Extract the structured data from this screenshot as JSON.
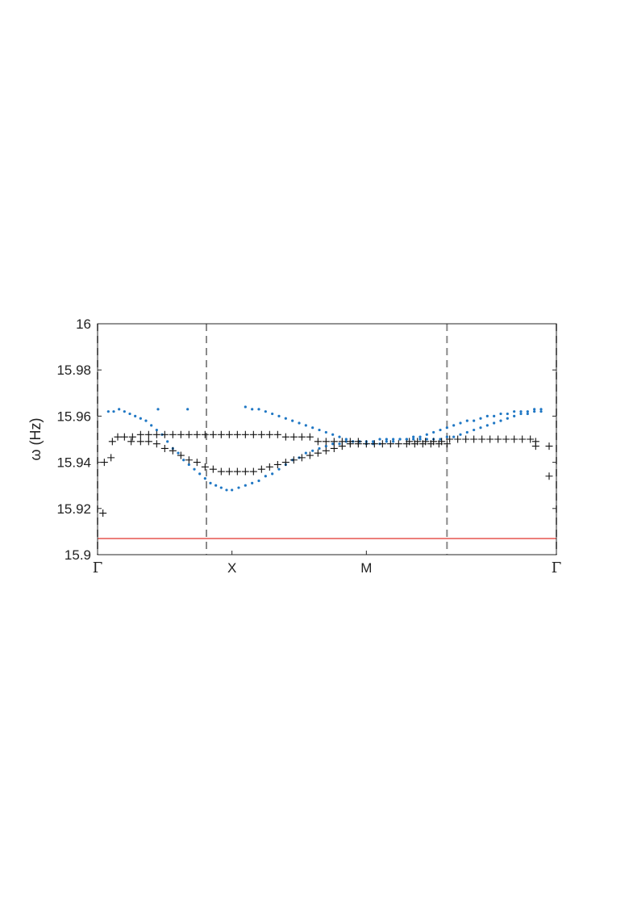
{
  "chart_data": {
    "type": "scatter",
    "title": "",
    "ylabel": "ω (Hz)",
    "xlabel": "",
    "ylim": [
      15.9,
      16.0
    ],
    "yticks": [
      15.9,
      15.92,
      15.94,
      15.96,
      15.98,
      16
    ],
    "ytick_labels": [
      "15.9",
      "15.92",
      "15.94",
      "15.96",
      "15.98",
      "16"
    ],
    "xlim": [
      0,
      3.414
    ],
    "xticks": [
      0,
      1,
      2,
      3.414
    ],
    "xtick_labels": [
      "Γ",
      "X",
      "M",
      "Γ"
    ],
    "dashed_lines_x": [
      0,
      0.81,
      2.6,
      3.414
    ],
    "reference_line": {
      "y": 15.907,
      "color": "#e0332c"
    },
    "colors": {
      "dots": "#1f77c4",
      "plus": "#111111",
      "dashed": "#8a8a8a"
    },
    "series": [
      {
        "marker": "dot",
        "points": [
          [
            0.08,
            15.962
          ],
          [
            0.12,
            15.962
          ],
          [
            0.16,
            15.963
          ],
          [
            0.2,
            15.962
          ],
          [
            0.24,
            15.961
          ],
          [
            0.28,
            15.96
          ],
          [
            0.32,
            15.959
          ],
          [
            0.36,
            15.958
          ],
          [
            0.4,
            15.956
          ],
          [
            0.44,
            15.954
          ],
          [
            0.48,
            15.952
          ],
          [
            0.52,
            15.949
          ],
          [
            0.56,
            15.946
          ],
          [
            0.6,
            15.944
          ],
          [
            0.64,
            15.941
          ],
          [
            0.68,
            15.939
          ],
          [
            0.72,
            15.937
          ],
          [
            0.76,
            15.935
          ],
          [
            0.8,
            15.933
          ],
          [
            0.84,
            15.931
          ],
          [
            0.88,
            15.93
          ],
          [
            0.92,
            15.929
          ],
          [
            0.96,
            15.928
          ],
          [
            1.0,
            15.928
          ],
          [
            1.05,
            15.929
          ],
          [
            1.1,
            15.93
          ],
          [
            1.15,
            15.931
          ],
          [
            1.2,
            15.932
          ],
          [
            1.25,
            15.934
          ],
          [
            1.3,
            15.935
          ],
          [
            1.35,
            15.937
          ],
          [
            1.4,
            15.939
          ],
          [
            1.45,
            15.941
          ],
          [
            1.5,
            15.942
          ],
          [
            1.55,
            15.944
          ],
          [
            1.6,
            15.945
          ],
          [
            1.65,
            15.946
          ],
          [
            1.7,
            15.947
          ],
          [
            1.75,
            15.948
          ],
          [
            1.8,
            15.948
          ],
          [
            1.85,
            15.949
          ],
          [
            1.9,
            15.949
          ],
          [
            1.95,
            15.949
          ],
          [
            2.0,
            15.949
          ],
          [
            2.05,
            15.949
          ],
          [
            2.1,
            15.95
          ],
          [
            2.15,
            15.95
          ],
          [
            2.2,
            15.95
          ],
          [
            2.25,
            15.95
          ],
          [
            2.3,
            15.95
          ],
          [
            2.35,
            15.95
          ],
          [
            2.4,
            15.95
          ],
          [
            2.45,
            15.95
          ],
          [
            2.5,
            15.95
          ],
          [
            2.55,
            15.95
          ],
          [
            2.6,
            15.951
          ],
          [
            2.65,
            15.951
          ],
          [
            2.7,
            15.952
          ],
          [
            2.75,
            15.953
          ],
          [
            2.8,
            15.954
          ],
          [
            2.85,
            15.955
          ],
          [
            2.9,
            15.956
          ],
          [
            2.95,
            15.957
          ],
          [
            3.0,
            15.958
          ],
          [
            3.05,
            15.959
          ],
          [
            3.1,
            15.96
          ],
          [
            3.15,
            15.961
          ],
          [
            3.2,
            15.961
          ],
          [
            3.25,
            15.962
          ],
          [
            3.3,
            15.962
          ],
          [
            1.1,
            15.964
          ],
          [
            1.15,
            15.963
          ],
          [
            1.2,
            15.963
          ],
          [
            1.25,
            15.962
          ],
          [
            1.3,
            15.961
          ],
          [
            1.35,
            15.96
          ],
          [
            1.4,
            15.959
          ],
          [
            1.45,
            15.958
          ],
          [
            1.5,
            15.957
          ],
          [
            1.55,
            15.956
          ],
          [
            1.6,
            15.955
          ],
          [
            1.65,
            15.954
          ],
          [
            1.7,
            15.953
          ],
          [
            1.75,
            15.952
          ],
          [
            1.8,
            15.951
          ],
          [
            1.85,
            15.95
          ],
          [
            1.9,
            15.949
          ],
          [
            1.95,
            15.949
          ],
          [
            2.0,
            15.948
          ],
          [
            2.05,
            15.948
          ],
          [
            2.1,
            15.948
          ],
          [
            2.15,
            15.949
          ],
          [
            2.2,
            15.949
          ],
          [
            2.25,
            15.95
          ],
          [
            2.3,
            15.95
          ],
          [
            2.35,
            15.951
          ],
          [
            2.4,
            15.951
          ],
          [
            2.45,
            15.952
          ],
          [
            2.5,
            15.953
          ],
          [
            2.55,
            15.954
          ],
          [
            2.6,
            15.955
          ],
          [
            2.65,
            15.956
          ],
          [
            2.7,
            15.957
          ],
          [
            2.75,
            15.958
          ],
          [
            2.8,
            15.958
          ],
          [
            2.85,
            15.959
          ],
          [
            2.9,
            15.96
          ],
          [
            2.95,
            15.96
          ],
          [
            3.0,
            15.961
          ],
          [
            3.05,
            15.961
          ],
          [
            3.1,
            15.962
          ],
          [
            3.15,
            15.962
          ],
          [
            3.2,
            15.962
          ],
          [
            3.25,
            15.963
          ],
          [
            3.3,
            15.963
          ],
          [
            0.45,
            15.963
          ],
          [
            0.67,
            15.963
          ]
        ]
      },
      {
        "marker": "plus",
        "points": [
          [
            0.04,
            15.918
          ],
          [
            0.05,
            15.94
          ],
          [
            0.1,
            15.942
          ],
          [
            0.11,
            15.949
          ],
          [
            0.15,
            15.951
          ],
          [
            0.2,
            15.951
          ],
          [
            0.26,
            15.951
          ],
          [
            0.32,
            15.952
          ],
          [
            0.38,
            15.952
          ],
          [
            0.44,
            15.952
          ],
          [
            0.5,
            15.952
          ],
          [
            0.56,
            15.952
          ],
          [
            0.62,
            15.952
          ],
          [
            0.68,
            15.952
          ],
          [
            0.74,
            15.952
          ],
          [
            0.8,
            15.952
          ],
          [
            0.86,
            15.952
          ],
          [
            0.92,
            15.952
          ],
          [
            0.98,
            15.952
          ],
          [
            1.04,
            15.952
          ],
          [
            1.1,
            15.952
          ],
          [
            1.16,
            15.952
          ],
          [
            1.22,
            15.952
          ],
          [
            1.28,
            15.952
          ],
          [
            1.34,
            15.952
          ],
          [
            0.25,
            15.949
          ],
          [
            0.32,
            15.949
          ],
          [
            0.38,
            15.949
          ],
          [
            0.44,
            15.948
          ],
          [
            0.5,
            15.946
          ],
          [
            0.56,
            15.945
          ],
          [
            0.62,
            15.943
          ],
          [
            0.68,
            15.941
          ],
          [
            0.74,
            15.94
          ],
          [
            0.8,
            15.938
          ],
          [
            0.86,
            15.937
          ],
          [
            0.92,
            15.936
          ],
          [
            0.98,
            15.936
          ],
          [
            1.04,
            15.936
          ],
          [
            1.1,
            15.936
          ],
          [
            1.16,
            15.936
          ],
          [
            1.22,
            15.937
          ],
          [
            1.28,
            15.938
          ],
          [
            1.34,
            15.939
          ],
          [
            1.4,
            15.94
          ],
          [
            1.46,
            15.941
          ],
          [
            1.52,
            15.942
          ],
          [
            1.58,
            15.943
          ],
          [
            1.64,
            15.944
          ],
          [
            1.7,
            15.945
          ],
          [
            1.76,
            15.946
          ],
          [
            1.82,
            15.947
          ],
          [
            1.88,
            15.948
          ],
          [
            1.94,
            15.948
          ],
          [
            2.0,
            15.948
          ],
          [
            1.4,
            15.951
          ],
          [
            1.46,
            15.951
          ],
          [
            1.52,
            15.951
          ],
          [
            1.58,
            15.951
          ],
          [
            1.64,
            15.949
          ],
          [
            1.7,
            15.949
          ],
          [
            1.76,
            15.949
          ],
          [
            1.82,
            15.949
          ],
          [
            1.88,
            15.949
          ],
          [
            1.94,
            15.949
          ],
          [
            2.06,
            15.948
          ],
          [
            2.12,
            15.948
          ],
          [
            2.18,
            15.948
          ],
          [
            2.24,
            15.948
          ],
          [
            2.3,
            15.948
          ],
          [
            2.36,
            15.948
          ],
          [
            2.42,
            15.948
          ],
          [
            2.48,
            15.948
          ],
          [
            2.54,
            15.948
          ],
          [
            2.6,
            15.948
          ],
          [
            2.32,
            15.949
          ],
          [
            2.38,
            15.949
          ],
          [
            2.44,
            15.949
          ],
          [
            2.5,
            15.949
          ],
          [
            2.56,
            15.949
          ],
          [
            2.62,
            15.95
          ],
          [
            2.68,
            15.95
          ],
          [
            2.74,
            15.95
          ],
          [
            2.8,
            15.95
          ],
          [
            2.86,
            15.95
          ],
          [
            2.92,
            15.95
          ],
          [
            2.98,
            15.95
          ],
          [
            3.04,
            15.95
          ],
          [
            3.1,
            15.95
          ],
          [
            3.16,
            15.95
          ],
          [
            3.22,
            15.95
          ],
          [
            3.26,
            15.949
          ],
          [
            3.26,
            15.947
          ],
          [
            3.36,
            15.947
          ],
          [
            3.36,
            15.934
          ]
        ]
      }
    ]
  }
}
